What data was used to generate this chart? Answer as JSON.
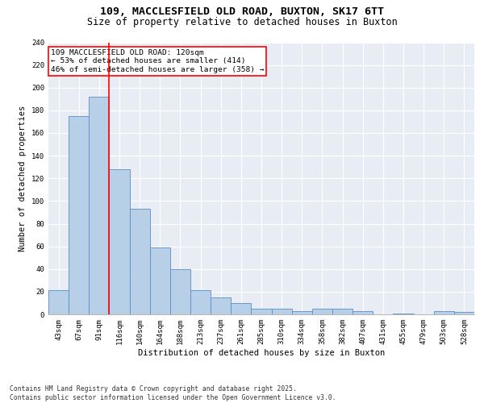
{
  "title_line1": "109, MACCLESFIELD OLD ROAD, BUXTON, SK17 6TT",
  "title_line2": "Size of property relative to detached houses in Buxton",
  "xlabel": "Distribution of detached houses by size in Buxton",
  "ylabel": "Number of detached properties",
  "categories": [
    "43sqm",
    "67sqm",
    "91sqm",
    "116sqm",
    "140sqm",
    "164sqm",
    "188sqm",
    "213sqm",
    "237sqm",
    "261sqm",
    "285sqm",
    "310sqm",
    "334sqm",
    "358sqm",
    "382sqm",
    "407sqm",
    "431sqm",
    "455sqm",
    "479sqm",
    "503sqm",
    "528sqm"
  ],
  "values": [
    21,
    175,
    192,
    128,
    93,
    59,
    40,
    21,
    15,
    10,
    5,
    5,
    3,
    5,
    5,
    3,
    0,
    1,
    0,
    3,
    2
  ],
  "bar_color": "#b8cfe8",
  "bar_edge_color": "#5b8ec4",
  "red_line_index": 2.5,
  "annotation_text": "109 MACCLESFIELD OLD ROAD: 120sqm\n← 53% of detached houses are smaller (414)\n46% of semi-detached houses are larger (358) →",
  "annotation_box_color": "white",
  "annotation_box_edge": "red",
  "ylim": [
    0,
    240
  ],
  "yticks": [
    0,
    20,
    40,
    60,
    80,
    100,
    120,
    140,
    160,
    180,
    200,
    220,
    240
  ],
  "background_color": "#e8edf5",
  "grid_color": "white",
  "footer_text": "Contains HM Land Registry data © Crown copyright and database right 2025.\nContains public sector information licensed under the Open Government Licence v3.0.",
  "title_fontsize": 9.5,
  "subtitle_fontsize": 8.5,
  "axis_label_fontsize": 7.5,
  "tick_fontsize": 6.5,
  "annotation_fontsize": 6.8,
  "footer_fontsize": 5.8
}
